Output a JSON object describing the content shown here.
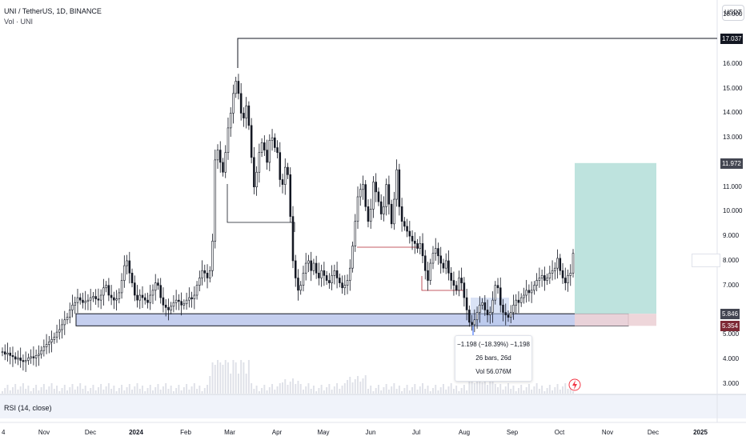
{
  "header": {
    "symbol_line": "UNI / TetherUS, 1D, BINANCE",
    "volume_line": "Vol · UNI"
  },
  "currency_button": "USDT",
  "price_axis": {
    "ticks": [
      "18.000",
      "16.000",
      "15.000",
      "14.000",
      "13.000",
      "11.000",
      "10.000",
      "9.000",
      "8.000",
      "7.000",
      "5.000",
      "4.000",
      "3.000"
    ],
    "markers": [
      {
        "label": "17.037",
        "kind": "line",
        "bg": "#131722"
      },
      {
        "label": "11.972",
        "kind": "target",
        "bg": "#434651"
      },
      {
        "label": "5.846",
        "kind": "entry",
        "bg": "#434651"
      },
      {
        "label": "5.354",
        "kind": "stop",
        "bg": "#7e2a36"
      }
    ]
  },
  "time_axis": [
    {
      "label": "4"
    },
    {
      "label": "Nov"
    },
    {
      "label": "Dec"
    },
    {
      "label": "2024",
      "bold": true
    },
    {
      "label": "Feb"
    },
    {
      "label": "Mar"
    },
    {
      "label": "Apr"
    },
    {
      "label": "May"
    },
    {
      "label": "Jun"
    },
    {
      "label": "Jul"
    },
    {
      "label": "Aug"
    },
    {
      "label": "Sep"
    },
    {
      "label": "Oct"
    },
    {
      "label": "Nov"
    },
    {
      "label": "Dec"
    },
    {
      "label": "2025",
      "bold": true
    }
  ],
  "measure_tooltip": {
    "line1": "−1.198 (−18.39%) −1,198",
    "line2": "26 bars, 26d",
    "line3": "Vol 56.076M"
  },
  "rsi_label": "RSI (14, close)",
  "chart_data": {
    "type": "candlestick",
    "series_name": "UNI / TetherUS",
    "interval": "1D",
    "ylim": [
      2.6,
      18.6
    ],
    "x_range": [
      "2023-10-04",
      "2025-01-15"
    ],
    "closes": [
      4.3,
      4.2,
      4.25,
      4.15,
      4.1,
      4.0,
      4.05,
      3.95,
      3.9,
      3.95,
      4.05,
      4.1,
      4.05,
      4.15,
      4.2,
      4.35,
      4.5,
      4.6,
      4.7,
      4.8,
      4.9,
      5.1,
      5.2,
      5.4,
      5.6,
      5.7,
      6.0,
      6.2,
      6.3,
      6.5,
      6.4,
      6.3,
      6.35,
      6.4,
      6.5,
      6.55,
      6.45,
      6.4,
      6.6,
      6.9,
      7.0,
      6.6,
      6.5,
      6.4,
      6.45,
      6.7,
      7.2,
      7.8,
      8.0,
      7.5,
      7.1,
      6.6,
      6.4,
      6.6,
      6.5,
      6.4,
      6.3,
      6.6,
      6.8,
      7.1,
      7.0,
      6.5,
      6.2,
      6.1,
      6.0,
      6.15,
      6.3,
      6.4,
      6.35,
      6.2,
      6.25,
      6.4,
      6.5,
      6.45,
      6.6,
      7.0,
      7.3,
      7.6,
      7.5,
      7.3,
      7.6,
      8.8,
      12.1,
      12.5,
      12.0,
      11.6,
      12.4,
      13.4,
      14.0,
      14.8,
      15.3,
      14.8,
      14.0,
      13.8,
      14.3,
      13.5,
      12.2,
      11.0,
      11.6,
      12.4,
      12.8,
      12.5,
      12.0,
      12.9,
      13.0,
      12.6,
      12.4,
      11.3,
      11.1,
      11.8,
      11.5,
      9.8,
      8.0,
      7.3,
      6.8,
      7.0,
      7.5,
      7.9,
      8.0,
      7.6,
      7.9,
      7.5,
      7.3,
      7.6,
      7.4,
      7.2,
      7.1,
      7.4,
      7.6,
      7.3,
      7.1,
      6.9,
      7.0,
      7.2,
      7.7,
      8.6,
      9.6,
      10.6,
      10.9,
      11.1,
      10.2,
      9.6,
      10.1,
      11.2,
      10.8,
      10.4,
      9.9,
      10.2,
      11.1,
      10.3,
      9.5,
      10.5,
      11.7,
      10.2,
      9.6,
      9.4,
      9.2,
      9.0,
      8.8,
      8.7,
      8.5,
      8.7,
      8.2,
      7.6,
      7.2,
      7.9,
      8.3,
      8.5,
      8.2,
      7.9,
      7.7,
      8.0,
      7.5,
      7.2,
      7.0,
      6.8,
      7.3,
      7.1,
      6.5,
      6.0,
      5.5,
      5.4,
      5.6,
      5.9,
      6.2,
      6.3,
      6.0,
      5.8,
      5.9,
      6.4,
      7.0,
      6.9,
      6.2,
      5.9,
      5.8,
      5.7,
      5.9,
      6.2,
      6.4,
      6.3,
      6.5,
      6.6,
      6.8,
      6.7,
      6.8,
      7.0,
      7.2,
      7.3,
      7.4,
      7.2,
      7.3,
      7.5,
      7.6,
      7.7,
      8.1,
      7.6,
      7.3,
      7.1,
      7.4,
      7.5,
      8.3
    ],
    "annotations": {
      "resistance_level": 17.037,
      "target_level": 11.972,
      "entry_level": 5.846,
      "stop_level": 5.354,
      "demand_zone": [
        5.354,
        5.846
      ],
      "measured_move": {
        "change": "−1.198",
        "percent": "−18.39%",
        "bars": 26
      }
    }
  },
  "colors": {
    "up_candle": "#131722",
    "down_candle": "#131722",
    "zone_fill": "#c5cfef",
    "target_fill": "#b7e0da",
    "stop_fill": "#ecd2d6",
    "volume": "#dfe1e8"
  }
}
